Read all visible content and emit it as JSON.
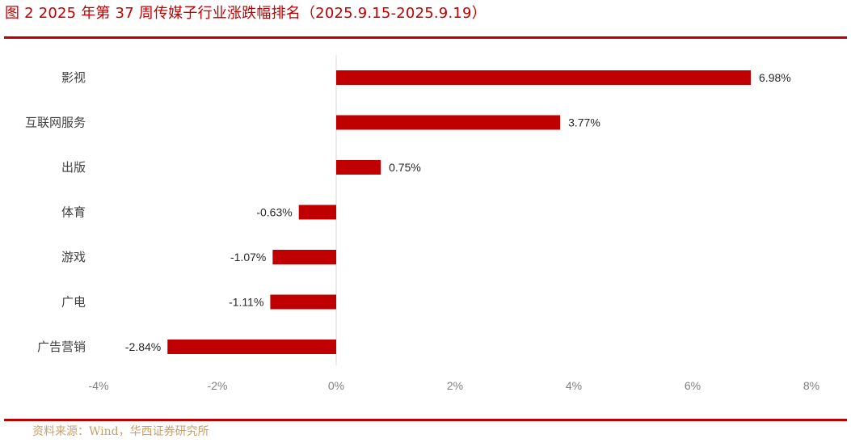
{
  "figure": {
    "title": "图 2 2025 年第 37 周传媒子行业涨跌幅排名（2025.9.15-2025.9.19）",
    "source": "资料来源：Wind，华西证券研究所",
    "accent_color": "#c00000",
    "bar_color": "#c00000",
    "source_color": "#c8a06a"
  },
  "chart_data": {
    "type": "bar",
    "orientation": "horizontal",
    "title": "",
    "xlabel": "",
    "ylabel": "",
    "categories": [
      "影视",
      "互联网服务",
      "出版",
      "体育",
      "游戏",
      "广电",
      "广告营销"
    ],
    "values": [
      6.98,
      3.77,
      0.75,
      -0.63,
      -1.07,
      -1.11,
      -2.84
    ],
    "data_labels": [
      "6.98%",
      "3.77%",
      "0.75%",
      "-0.63%",
      "-1.07%",
      "-1.11%",
      "-2.84%"
    ],
    "xlim": [
      -4,
      8
    ],
    "xticks": [
      -4,
      -2,
      0,
      2,
      4,
      6,
      8
    ],
    "xtick_labels": [
      "-4%",
      "-2%",
      "0%",
      "2%",
      "4%",
      "6%",
      "8%"
    ],
    "grid": false,
    "legend": "none"
  }
}
